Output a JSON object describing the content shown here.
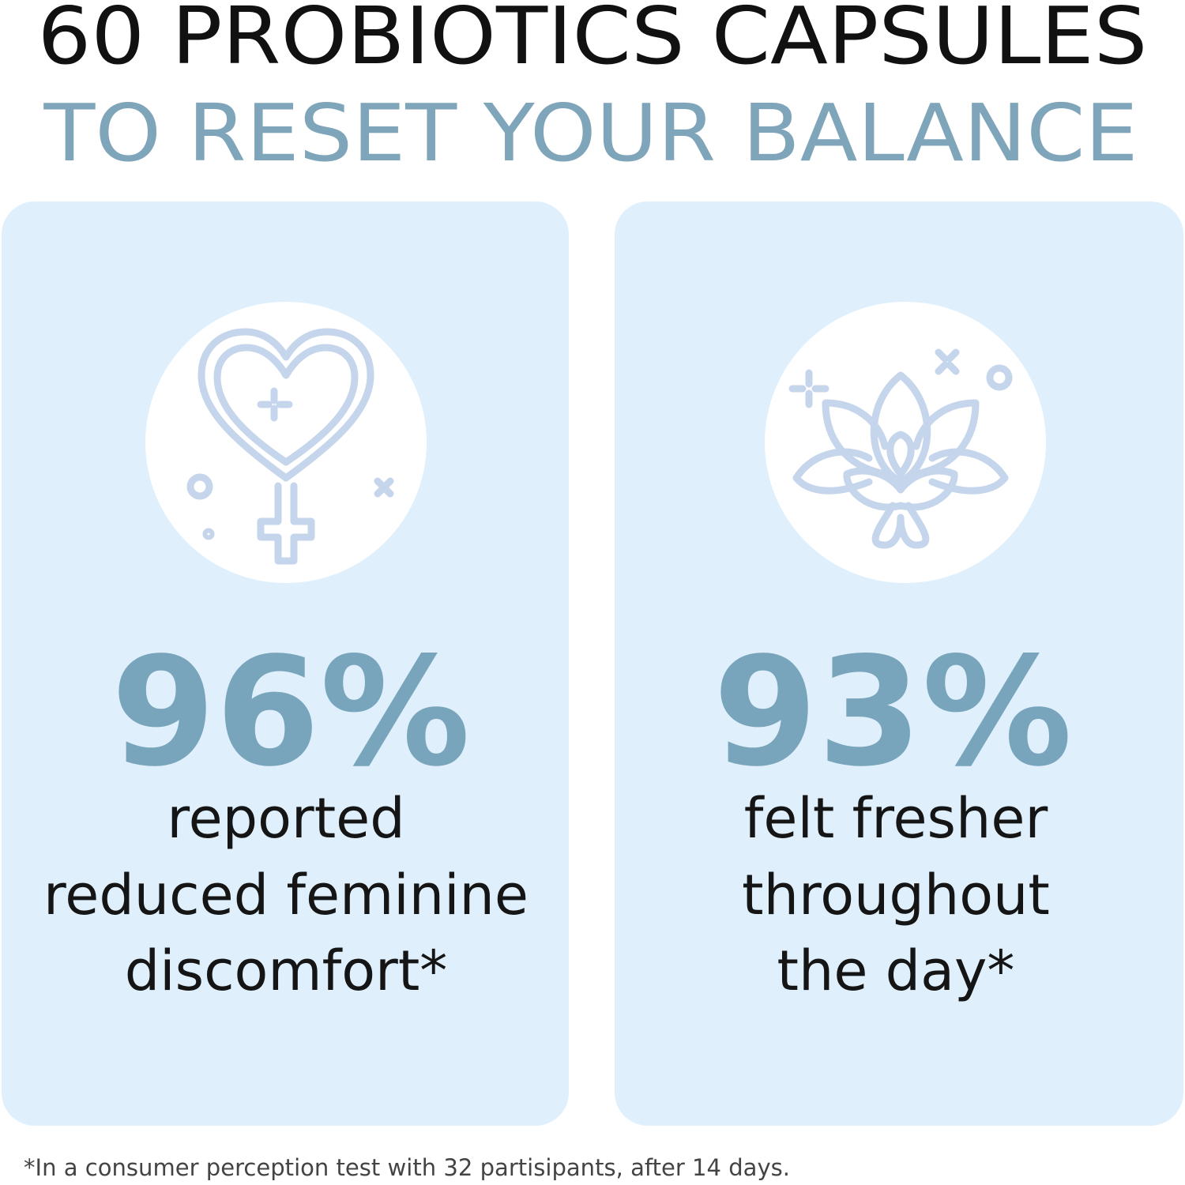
{
  "header": {
    "title": "60 PROBIOTICS CAPSULES",
    "subtitle": "TO RESET YOUR BALANCE"
  },
  "cards": [
    {
      "stat": "96%",
      "lines": [
        "reported",
        "reduced feminine",
        "discomfort*"
      ]
    },
    {
      "stat": "93%",
      "lines": [
        "felt fresher",
        "throughout",
        "the day*"
      ]
    }
  ],
  "footnote": "*In a consumer perception test with 32 partisipants, after 14 days."
}
